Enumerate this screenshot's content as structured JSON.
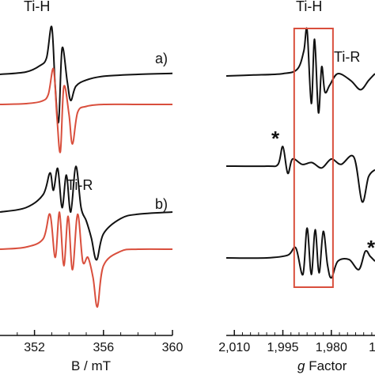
{
  "chart_data": [
    {
      "type": "line",
      "panel": "left",
      "title": "Ti-H",
      "xlabel": "B / mT",
      "x_ticks": [
        "352",
        "356",
        "360"
      ],
      "x_range": [
        350,
        360
      ],
      "annotations": [
        "a)",
        "b)",
        "Ti-R"
      ],
      "colors": {
        "trace": "#111111",
        "simulation": "#d94f3d"
      },
      "series": [
        {
          "group": "a)",
          "color": "#111111",
          "x": [
            350,
            351.5,
            352.3,
            352.7,
            353.0,
            353.2,
            353.4,
            353.6,
            353.9,
            354.1,
            354.4,
            355,
            356,
            358,
            360
          ],
          "y": [
            0.0,
            0.05,
            0.18,
            0.35,
            1.0,
            -0.25,
            -1.0,
            0.55,
            -0.15,
            -0.55,
            -0.25,
            -0.12,
            -0.04,
            0.0,
            0.02
          ]
        },
        {
          "group": "a)",
          "color": "#d94f3d",
          "x": [
            350,
            351.5,
            352.4,
            352.8,
            353.1,
            353.3,
            353.5,
            353.7,
            354.0,
            354.2,
            354.5,
            355,
            356,
            358,
            360
          ],
          "y": [
            0.0,
            0.02,
            0.08,
            0.25,
            0.9,
            -0.3,
            -1.2,
            0.45,
            -0.25,
            -1.0,
            -0.2,
            -0.05,
            0.0,
            0.0,
            0.0
          ]
        },
        {
          "group": "b)",
          "color": "#111111",
          "x": [
            350,
            351.5,
            352.5,
            352.9,
            353.1,
            353.35,
            353.6,
            353.85,
            354.1,
            354.4,
            354.7,
            355.0,
            355.3,
            355.6,
            356,
            357,
            358,
            360
          ],
          "y": [
            0.0,
            0.1,
            0.4,
            0.9,
            0.5,
            1.0,
            0.1,
            0.85,
            0.0,
            1.05,
            0.1,
            -0.2,
            -0.6,
            -1.1,
            -0.5,
            -0.15,
            -0.05,
            0.0
          ]
        },
        {
          "group": "b)",
          "color": "#d94f3d",
          "x": [
            350,
            351.5,
            352.5,
            352.9,
            353.2,
            353.45,
            353.7,
            353.95,
            354.2,
            354.5,
            354.8,
            355.1,
            355.4,
            355.65,
            356,
            357,
            358,
            360
          ],
          "y": [
            0.0,
            0.05,
            0.25,
            0.85,
            -0.2,
            0.9,
            -0.4,
            0.8,
            -0.5,
            0.85,
            -0.3,
            -0.2,
            -0.7,
            -1.4,
            -0.4,
            -0.05,
            0.0,
            0.0
          ]
        }
      ]
    },
    {
      "type": "line",
      "panel": "right",
      "title": "Ti-H",
      "xlabel_italic": "g",
      "xlabel_rest": " Factor",
      "x_ticks": [
        "2,010",
        "1,995",
        "1,980",
        "1,9"
      ],
      "x_range": [
        2.0125,
        1.9665
      ],
      "annotations": [
        "Ti-R",
        "*",
        "*"
      ],
      "box": {
        "x_from": 1.9915,
        "x_to": 1.9795,
        "color": "#d94f3d"
      },
      "series": [
        {
          "group": "top",
          "color": "#111111",
          "x": [
            2.0125,
            2.004,
            1.995,
            1.9905,
            1.9885,
            1.9875,
            1.9862,
            1.9852,
            1.984,
            1.983,
            1.982,
            1.9805,
            1.978,
            1.974,
            1.971,
            1.9685,
            1.9665
          ],
          "y": [
            0.0,
            0.02,
            0.05,
            0.15,
            0.55,
            1.0,
            -0.6,
            0.8,
            -0.8,
            0.2,
            -0.35,
            -0.2,
            0.05,
            -0.1,
            -0.3,
            -0.1,
            0.05
          ]
        },
        {
          "group": "middle",
          "color": "#111111",
          "x": [
            2.0125,
            2.0,
            1.9965,
            1.995,
            1.9935,
            1.992,
            1.989,
            1.986,
            1.983,
            1.98,
            1.977,
            1.973,
            1.9705,
            1.9685,
            1.9665
          ],
          "y": [
            0.0,
            0.0,
            0.05,
            0.55,
            -0.2,
            0.2,
            0.05,
            0.1,
            -0.05,
            0.2,
            0.05,
            0.25,
            -1.0,
            -0.3,
            -0.1
          ]
        },
        {
          "group": "bottom",
          "color": "#111111",
          "x": [
            2.0125,
            2.0,
            1.9935,
            1.991,
            1.9888,
            1.9875,
            1.9862,
            1.985,
            1.9838,
            1.9825,
            1.9812,
            1.98,
            1.978,
            1.9745,
            1.9715,
            1.9695,
            1.968,
            1.9665
          ],
          "y": [
            0.0,
            0.0,
            0.08,
            0.3,
            -0.5,
            0.9,
            -0.5,
            0.85,
            -0.45,
            0.8,
            -0.2,
            -0.6,
            -0.1,
            -0.05,
            -0.35,
            0.2,
            0.05,
            -0.1
          ]
        }
      ]
    }
  ]
}
